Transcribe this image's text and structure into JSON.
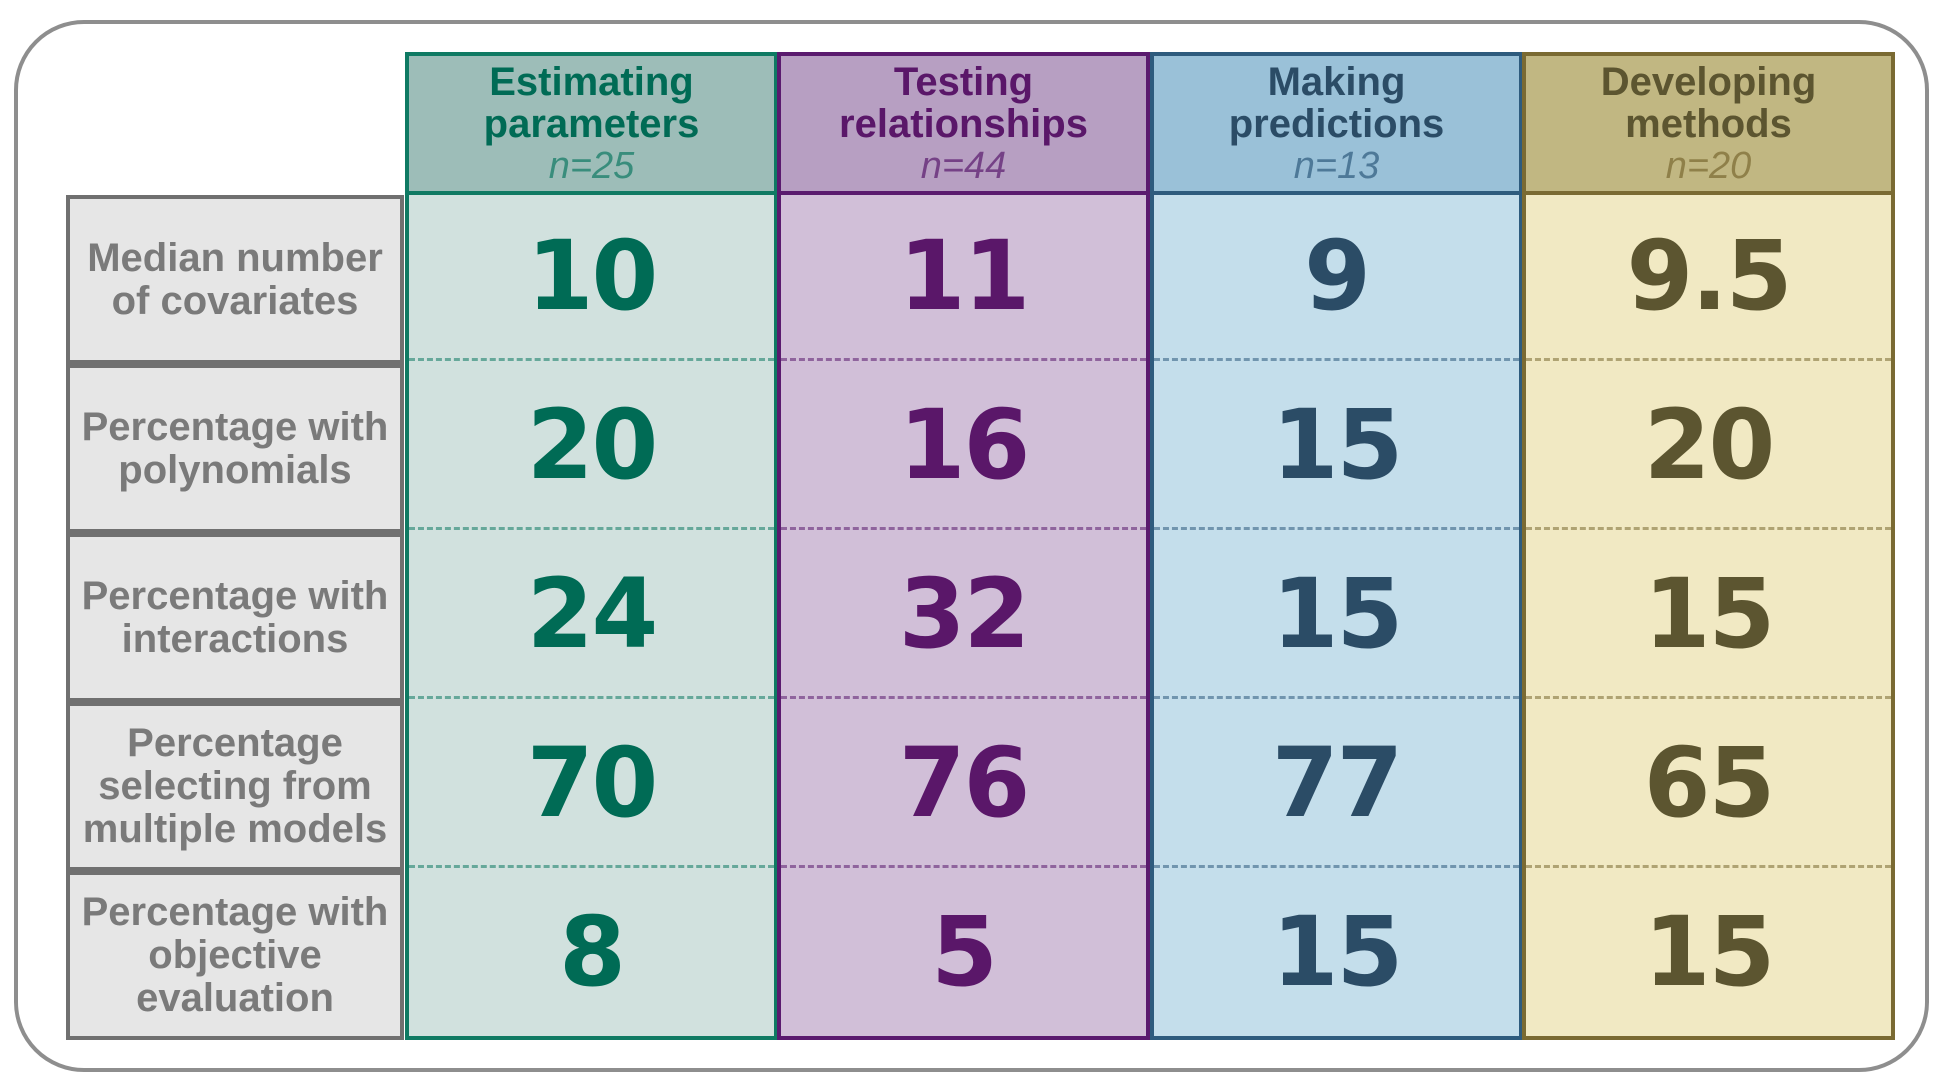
{
  "chart_data": {
    "type": "table",
    "row_labels": [
      "Median number of covariates",
      "Percentage with polynomials",
      "Percentage with interactions",
      "Percentage selecting from multiple models",
      "Percentage with objective evaluation"
    ],
    "columns": [
      {
        "title": "Estimating parameters",
        "n_label": "n=25",
        "values": [
          "10",
          "20",
          "24",
          "70",
          "8"
        ],
        "colors": {
          "header_bg": "#9dbdb8",
          "body_bg": "#d1e1de",
          "border": "#0f7a63",
          "text": "#006b55"
        }
      },
      {
        "title": "Testing relationships",
        "n_label": "n=44",
        "values": [
          "11",
          "16",
          "32",
          "76",
          "5"
        ],
        "colors": {
          "header_bg": "#b79fc2",
          "body_bg": "#d1bfd8",
          "border": "#5a1a6e",
          "text": "#5a1769"
        }
      },
      {
        "title": "Making predictions",
        "n_label": "n=13",
        "values": [
          "9",
          "15",
          "15",
          "77",
          "15"
        ],
        "colors": {
          "header_bg": "#9ac1d8",
          "body_bg": "#c4deeb",
          "border": "#2e5b7d",
          "text": "#2b4c66"
        }
      },
      {
        "title": "Developing methods",
        "n_label": "n=20",
        "values": [
          "9.5",
          "20",
          "15",
          "65",
          "15"
        ],
        "colors": {
          "header_bg": "#c1b782",
          "body_bg": "#f1e9c3",
          "border": "#7a6a32",
          "text": "#5c5530"
        }
      }
    ]
  }
}
